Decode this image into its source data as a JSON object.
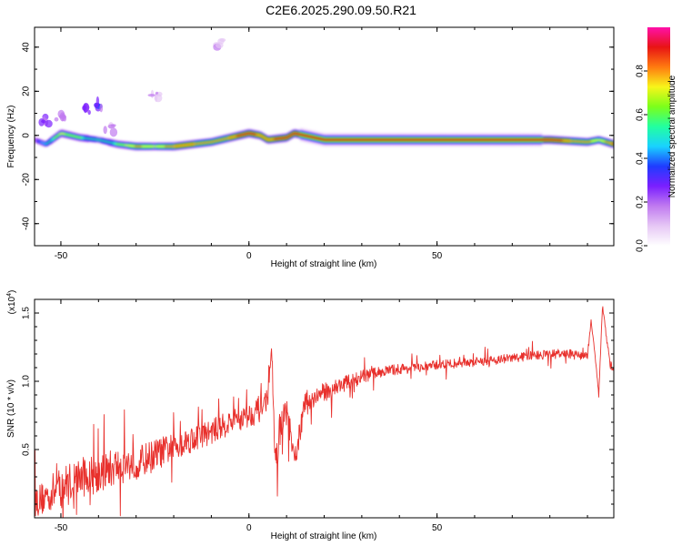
{
  "title": "C2E6.2025.290.09.50.R21",
  "colors": {
    "signal_line": "#e8302c",
    "axis": "#000000",
    "colormap": [
      "#ffffff",
      "#e6c7f5",
      "#c07af0",
      "#7a1fff",
      "#1f3cff",
      "#19d2ff",
      "#22ffa0",
      "#7cff1a",
      "#f8f51a",
      "#ff7a10",
      "#e81414",
      "#ff10a8"
    ]
  },
  "chart_data": [
    {
      "type": "heatmap",
      "name": "spectrogram",
      "xlabel": "Height of straight line (km)",
      "ylabel": "Frequency (Hz)",
      "xlim": [
        -57,
        97
      ],
      "ylim": [
        -50,
        49
      ],
      "xticks": [
        "-50",
        "0",
        "50"
      ],
      "xtick_values": [
        -50,
        0,
        50
      ],
      "yticks": [
        "40",
        "20",
        "0",
        "-20",
        "-40"
      ],
      "ytick_values": [
        40,
        20,
        0,
        -20,
        -40
      ],
      "colorbar": {
        "label": "Normalized spectral amplitude",
        "range": [
          0,
          1
        ],
        "ticks": [
          "0.0",
          "0.2",
          "0.4",
          "0.6",
          "0.8"
        ],
        "tick_values": [
          0.0,
          0.2,
          0.4,
          0.6,
          0.8
        ]
      },
      "ridge": {
        "x": [
          -57,
          -54,
          -50,
          -45,
          -40,
          -35,
          -30,
          -25,
          -20,
          -15,
          -10,
          -5,
          0,
          3,
          5,
          10,
          12,
          20,
          30,
          40,
          50,
          60,
          70,
          80,
          90,
          93,
          97
        ],
        "freq": [
          -2,
          -4,
          1,
          -1,
          -2,
          -4,
          -5,
          -5,
          -5,
          -4,
          -3,
          -1,
          1,
          0,
          -2,
          -1,
          1,
          -2,
          -2,
          -2,
          -2,
          -2,
          -2,
          -2,
          -3,
          -2,
          -4
        ],
        "amplitude": [
          0.3,
          0.5,
          0.7,
          0.6,
          0.5,
          0.6,
          0.8,
          0.7,
          0.85,
          0.85,
          0.8,
          0.85,
          0.9,
          0.85,
          0.85,
          0.9,
          0.9,
          0.95,
          0.95,
          0.95,
          0.95,
          0.95,
          0.95,
          0.9,
          0.8,
          0.7,
          0.9
        ]
      },
      "scattered_blobs": [
        {
          "x": -50,
          "freq": 9,
          "amplitude": 0.2
        },
        {
          "x": -43,
          "freq": 12,
          "amplitude": 0.35
        },
        {
          "x": -40,
          "freq": 14,
          "amplitude": 0.4
        },
        {
          "x": -37,
          "freq": 3,
          "amplitude": 0.2
        },
        {
          "x": -25,
          "freq": 19,
          "amplitude": 0.15
        },
        {
          "x": -8,
          "freq": 42,
          "amplitude": 0.15
        },
        {
          "x": -54,
          "freq": 7,
          "amplitude": 0.3
        }
      ]
    },
    {
      "type": "line",
      "name": "snr",
      "xlabel": "Height of straight line (km)",
      "ylabel": "SNR (10 * v/v)",
      "y_multiplier": "(x10",
      "y_multiplier_exp": "4",
      "y_multiplier_close": ")",
      "xlim": [
        -57,
        97
      ],
      "ylim": [
        0,
        1.6
      ],
      "xticks": [
        "-50",
        "0",
        "50"
      ],
      "xtick_values": [
        -50,
        0,
        50
      ],
      "yticks": [
        "0.5",
        "1.0",
        "1.5"
      ],
      "ytick_values": [
        0.5,
        1.0,
        1.5
      ],
      "series": [
        {
          "x": [
            -57,
            -55,
            -50,
            -45,
            -40,
            -35,
            -30,
            -25,
            -20,
            -15,
            -10,
            -5,
            0,
            3,
            5,
            6,
            7,
            8,
            10,
            12,
            15,
            20,
            25,
            30,
            35,
            40,
            45,
            50,
            60,
            70,
            80,
            85,
            90,
            91,
            92,
            93,
            94,
            96,
            97
          ],
          "y": [
            0.12,
            0.14,
            0.22,
            0.3,
            0.32,
            0.38,
            0.4,
            0.46,
            0.52,
            0.58,
            0.63,
            0.7,
            0.75,
            0.8,
            0.88,
            1.2,
            0.4,
            0.6,
            0.8,
            0.4,
            0.85,
            0.92,
            0.98,
            1.03,
            1.07,
            1.09,
            1.1,
            1.12,
            1.14,
            1.17,
            1.2,
            1.2,
            1.18,
            1.45,
            1.2,
            0.9,
            1.55,
            1.12,
            1.1
          ],
          "noise": [
            0.12,
            0.12,
            0.16,
            0.15,
            0.14,
            0.14,
            0.12,
            0.12,
            0.1,
            0.1,
            0.09,
            0.09,
            0.09,
            0.1,
            0.08,
            0.05,
            0.1,
            0.15,
            0.12,
            0.1,
            0.08,
            0.07,
            0.06,
            0.05,
            0.04,
            0.04,
            0.035,
            0.035,
            0.035,
            0.035,
            0.035,
            0.035,
            0.03,
            0.02,
            0.02,
            0.02,
            0.02,
            0.03,
            0.03
          ]
        }
      ]
    }
  ]
}
